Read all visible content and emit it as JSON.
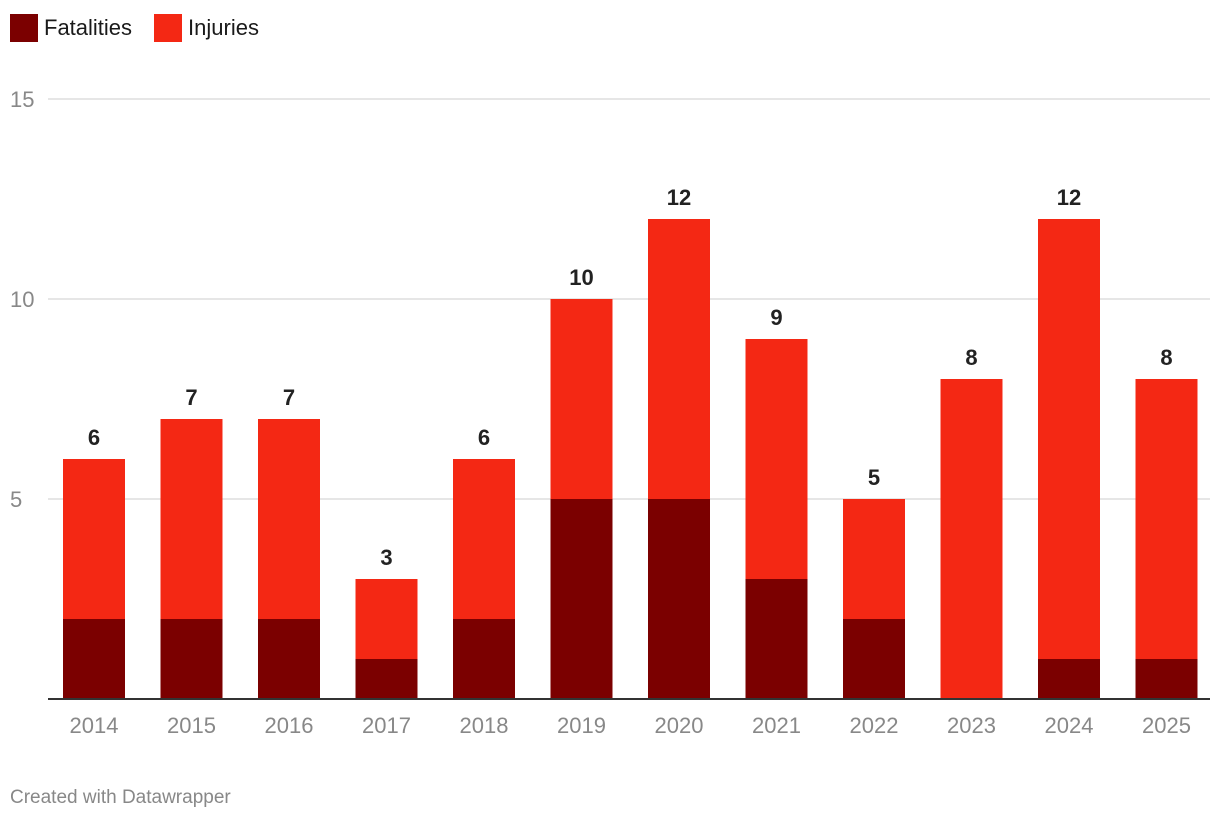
{
  "colors": {
    "fatalities": "#7b0000",
    "injuries": "#f42814",
    "grid": "#dddddd",
    "axis": "#333333",
    "tick_label": "#888888",
    "total_label": "#222222"
  },
  "legend": {
    "items": [
      {
        "label": "Fatalities",
        "color": "#7b0000"
      },
      {
        "label": "Injuries",
        "color": "#f42814"
      }
    ]
  },
  "credit": "Created with Datawrapper",
  "chart_data": {
    "type": "bar",
    "stacked": true,
    "title": "",
    "xlabel": "",
    "ylabel": "",
    "categories": [
      "2014",
      "2015",
      "2016",
      "2017",
      "2018",
      "2019",
      "2020",
      "2021",
      "2022",
      "2023",
      "2024",
      "2025"
    ],
    "series": [
      {
        "name": "Fatalities",
        "color": "#7b0000",
        "values": [
          2,
          2,
          2,
          1,
          2,
          5,
          5,
          3,
          2,
          0,
          1,
          1
        ]
      },
      {
        "name": "Injuries",
        "color": "#f42814",
        "values": [
          4,
          5,
          5,
          2,
          4,
          5,
          7,
          6,
          3,
          8,
          11,
          7
        ]
      }
    ],
    "totals": [
      6,
      7,
      7,
      3,
      6,
      10,
      12,
      9,
      5,
      8,
      12,
      8
    ],
    "total_labels": [
      "6",
      "7",
      "7",
      "3",
      "6",
      "10",
      "12",
      "9",
      "5",
      "8",
      "12",
      "8"
    ],
    "ylim": [
      0,
      15
    ],
    "yticks": [
      5,
      10,
      15
    ],
    "ytick_labels": [
      "5",
      "10",
      "15"
    ],
    "grid": true,
    "legend_position": "top-left"
  }
}
